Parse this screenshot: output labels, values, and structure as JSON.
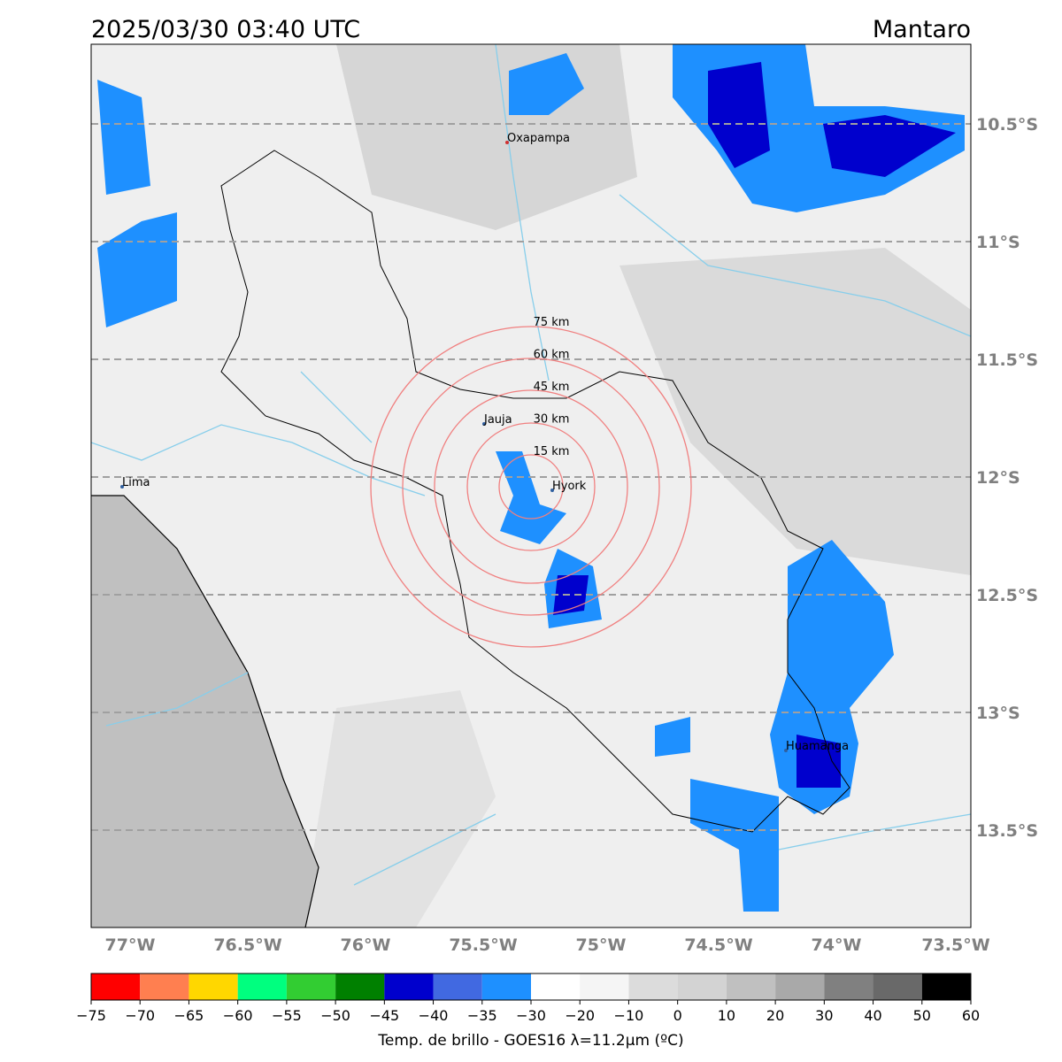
{
  "header": {
    "title": "2025/03/30 03:40 UTC",
    "region": "Mantaro"
  },
  "map": {
    "lat_labels": [
      "10.5°S",
      "11°S",
      "11.5°S",
      "12°S",
      "12.5°S",
      "13°S",
      "13.5°S"
    ],
    "lon_labels": [
      "77°W",
      "76.5°W",
      "76°W",
      "75.5°W",
      "75°W",
      "74.5°W",
      "74°W",
      "73.5°W"
    ],
    "places": [
      "Oxapampa",
      "Jauja",
      "Hyork",
      "Lima",
      "Huamanga"
    ],
    "rings": [
      "15 km",
      "30 km",
      "45 km",
      "60 km",
      "75 km"
    ]
  },
  "colorbar": {
    "labels": [
      "−75",
      "−70",
      "−65",
      "−60",
      "−55",
      "−50",
      "−45",
      "−40",
      "−35",
      "−30",
      "−20",
      "−10",
      "0",
      "10",
      "20",
      "30",
      "40",
      "50",
      "60"
    ],
    "colors": [
      "#ff0000",
      "#ff7f50",
      "#ffd700",
      "#00ff7f",
      "#32cd32",
      "#008000",
      "#0000cd",
      "#4169e1",
      "#1e90ff",
      "#ffffff",
      "#f5f5f5",
      "#dcdcdc",
      "#d3d3d3",
      "#c0c0c0",
      "#a9a9a9",
      "#808080",
      "#696969",
      "#000000"
    ],
    "title": "Temp. de brillo - GOES16 λ=11.2μm (ºC)"
  }
}
